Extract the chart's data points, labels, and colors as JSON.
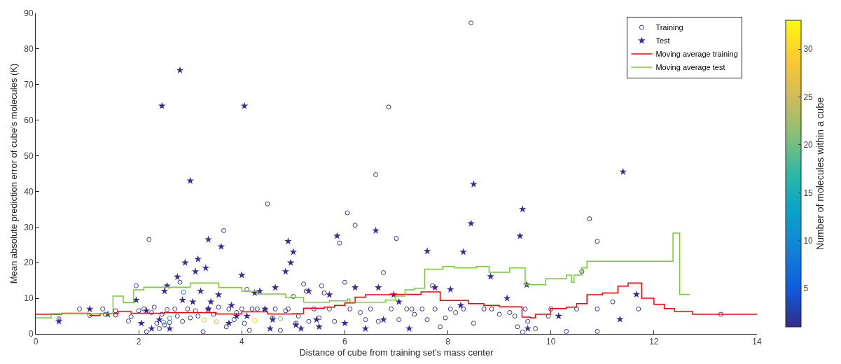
{
  "chart_data": {
    "type": "scatter",
    "xlabel": "Distance of cube from training set's mass center",
    "ylabel": "Mean absolute prediction error of cube's molecules (K)",
    "clabel": "Number of molecules within a cube",
    "clim": [
      1,
      33
    ],
    "cticks": [
      5,
      10,
      15,
      20,
      25,
      30
    ],
    "xlim": [
      0,
      14
    ],
    "xticks": [
      0,
      2,
      4,
      6,
      8,
      10,
      12,
      14
    ],
    "ylim": [
      0,
      90
    ],
    "yticks": [
      0,
      10,
      20,
      30,
      40,
      50,
      60,
      70,
      80,
      90
    ],
    "grid": false,
    "legend": "top right",
    "series": [
      {
        "name": "Training",
        "type": "scatter",
        "marker": "circle",
        "x": [
          0.45,
          0.85,
          1.05,
          1.35,
          1.3,
          1.55,
          1.55,
          1.8,
          1.85,
          1.95,
          2.0,
          2.1,
          2.15,
          2.2,
          2.25,
          2.3,
          2.35,
          2.4,
          2.45,
          2.48,
          2.5,
          2.55,
          2.6,
          2.6,
          2.7,
          2.75,
          2.8,
          2.85,
          2.87,
          2.95,
          3.0,
          3.1,
          3.15,
          3.25,
          3.27,
          3.35,
          3.45,
          3.51,
          3.55,
          3.65,
          3.7,
          3.75,
          3.85,
          3.9,
          4.0,
          4.05,
          4.1,
          4.15,
          4.2,
          4.25,
          4.3,
          4.45,
          4.5,
          4.6,
          4.65,
          4.75,
          4.75,
          4.85,
          4.9,
          5.0,
          5.05,
          5.1,
          5.2,
          5.25,
          5.3,
          5.4,
          5.5,
          5.55,
          5.6,
          5.7,
          5.8,
          5.9,
          6.0,
          6.05,
          6.1,
          6.2,
          6.3,
          6.4,
          6.5,
          6.6,
          6.65,
          6.75,
          6.85,
          6.9,
          7.0,
          7.05,
          7.2,
          7.3,
          7.35,
          7.5,
          7.6,
          7.7,
          7.75,
          7.85,
          7.95,
          8.05,
          8.15,
          8.3,
          8.45,
          8.5,
          8.7,
          8.85,
          9.0,
          9.2,
          9.3,
          9.35,
          9.45,
          9.5,
          9.55,
          9.7,
          9.95,
          10.0,
          10.3,
          10.5,
          10.6,
          10.75,
          10.9,
          10.9,
          10.9,
          11.2,
          11.7,
          13.3
        ],
        "values": [
          4.2,
          7,
          5.2,
          5.5,
          7,
          6.5,
          5.3,
          3.6,
          4.8,
          13.5,
          6.5,
          7,
          0.6,
          26.5,
          6,
          7.5,
          3,
          1.5,
          5.5,
          3.3,
          2.5,
          6.8,
          3.2,
          4.4,
          7,
          5,
          14.5,
          3.5,
          11.7,
          7,
          4.5,
          6.5,
          5,
          0.6,
          3.9,
          7,
          5.5,
          3.4,
          7.5,
          29,
          2,
          7,
          4,
          6,
          7,
          3,
          12.5,
          1,
          7,
          3.8,
          7,
          6.8,
          36.5,
          4.5,
          7,
          1,
          4.3,
          6.5,
          7,
          10.5,
          3,
          5,
          14,
          12,
          3.5,
          7,
          4.5,
          13.5,
          11.5,
          7,
          3.5,
          25.5,
          14.5,
          34,
          7,
          30.5,
          6,
          4,
          7,
          44.7,
          3.5,
          17.2,
          63.7,
          7,
          26.8,
          4,
          7,
          7,
          5.5,
          7,
          4,
          13.5,
          7,
          2,
          4.5,
          7,
          6,
          7,
          87.3,
          3,
          7,
          7,
          5.5,
          6,
          5,
          2,
          0.5,
          7,
          3.5,
          1.5,
          5,
          7,
          0.7,
          7,
          17.5,
          32.3,
          26,
          0.7,
          7,
          9,
          7,
          5.5
        ],
        "colors": [
          "#38309a",
          "#38309a",
          "#38309a",
          "#38309a",
          "#38309a",
          "#38309a",
          "#38309a",
          "#38309a",
          "#38309a",
          "#38309a",
          "#38309a",
          "#38309a",
          "#38309a",
          "#38309a",
          "#38309a",
          "#38309a",
          "#38309a",
          "#38309a",
          "#38309a",
          "#0a9ace",
          "#38309a",
          "#38309a",
          "#38309a",
          "#10a8bf",
          "#38309a",
          "#38309a",
          "#38309a",
          "#38309a",
          "#0d92d0",
          "#38309a",
          "#38309a",
          "#38309a",
          "#38309a",
          "#38309a",
          "#f0c23f",
          "#38309a",
          "#38309a",
          "#d1bb59",
          "#38309a",
          "#38309a",
          "#38309a",
          "#38309a",
          "#38309a",
          "#38309a",
          "#38309a",
          "#38309a",
          "#38309a",
          "#38309a",
          "#38309a",
          "#fdd42a",
          "#38309a",
          "#38309a",
          "#38309a",
          "#38309a",
          "#38309a",
          "#38309a",
          "#73bd80",
          "#38309a",
          "#38309a",
          "#38309a",
          "#38309a",
          "#38309a",
          "#38309a",
          "#38309a",
          "#38309a",
          "#38309a",
          "#38309a",
          "#38309a",
          "#38309a",
          "#38309a",
          "#38309a",
          "#38309a",
          "#38309a",
          "#38309a",
          "#38309a",
          "#38309a",
          "#38309a",
          "#38309a",
          "#38309a",
          "#38309a",
          "#38309a",
          "#38309a",
          "#38309a",
          "#38309a",
          "#38309a",
          "#38309a",
          "#38309a",
          "#38309a",
          "#38309a",
          "#38309a",
          "#38309a",
          "#38309a",
          "#38309a",
          "#38309a",
          "#38309a",
          "#38309a",
          "#38309a",
          "#38309a",
          "#38309a",
          "#38309a",
          "#38309a",
          "#38309a",
          "#38309a",
          "#38309a",
          "#38309a",
          "#38309a",
          "#38309a",
          "#38309a",
          "#38309a",
          "#38309a",
          "#38309a",
          "#38309a",
          "#38309a",
          "#38309a",
          "#38309a",
          "#38309a",
          "#38309a",
          "#38309a",
          "#38309a",
          "#38309a",
          "#38309a",
          "#38309a"
        ]
      },
      {
        "name": "Test",
        "type": "scatter",
        "marker": "star",
        "x": [
          0.45,
          1.05,
          1.4,
          1.95,
          2.05,
          2.15,
          2.25,
          2.4,
          2.45,
          2.5,
          2.55,
          2.6,
          2.75,
          2.8,
          2.85,
          2.9,
          3.0,
          3.05,
          3.1,
          3.15,
          3.2,
          3.3,
          3.35,
          3.35,
          3.4,
          3.55,
          3.6,
          3.75,
          3.8,
          3.9,
          4.0,
          4.05,
          4.1,
          4.25,
          4.35,
          4.45,
          4.55,
          4.6,
          4.65,
          4.85,
          4.9,
          4.95,
          5.0,
          5.05,
          5.15,
          5.3,
          5.45,
          5.5,
          5.7,
          5.85,
          6.0,
          6.2,
          6.4,
          6.6,
          6.65,
          6.75,
          6.95,
          7.05,
          7.25,
          7.6,
          7.75,
          8.05,
          8.25,
          8.3,
          8.45,
          8.5,
          8.83,
          9.15,
          9.4,
          9.45,
          9.55,
          9.53,
          10.15,
          11.34,
          11.4,
          11.66
        ],
        "values": [
          3.5,
          7,
          5.5,
          9.5,
          3,
          6.5,
          1.5,
          4,
          64,
          12,
          13.5,
          1.5,
          16,
          74,
          9.5,
          20,
          43,
          9,
          17.5,
          21,
          12,
          18.5,
          26.5,
          7,
          9,
          11,
          24.5,
          3,
          8,
          5,
          16.5,
          64,
          5,
          11.5,
          12,
          7,
          1.5,
          4,
          13,
          17.5,
          26,
          20,
          23,
          2.5,
          1.5,
          12,
          4,
          2,
          11,
          27.5,
          3,
          13,
          1.5,
          29,
          13,
          4,
          11,
          9,
          1.5,
          23.2,
          13,
          12.5,
          8,
          23,
          31,
          42,
          16.1,
          10,
          27.5,
          35,
          1.5,
          13.8,
          5,
          4.1,
          45.5,
          11.1
        ],
        "color": "#3a2a9e"
      },
      {
        "name": "Moving average training",
        "type": "step",
        "color": "#ff0000",
        "x": [
          0,
          0.5,
          1.05,
          1.25,
          1.6,
          1.85,
          2.5,
          3.0,
          3.5,
          4.0,
          4.5,
          5.0,
          5.2,
          5.6,
          5.8,
          6.0,
          6.2,
          6.4,
          6.87,
          7.48,
          7.85,
          8.4,
          8.7,
          9.0,
          9.44,
          9.6,
          9.7,
          9.99,
          10.3,
          10.5,
          10.7,
          11.0,
          11.3,
          11.5,
          11.76,
          12.0,
          12.2,
          12.4,
          12.75,
          14.0
        ],
        "values": [
          5.5,
          5.8,
          5.2,
          5.7,
          6.3,
          5.8,
          6.0,
          6.0,
          5.6,
          6.2,
          5.6,
          5.7,
          7.2,
          7.5,
          8.0,
          8.7,
          10.3,
          11.0,
          11.1,
          11.8,
          9.4,
          8.5,
          8.0,
          7.6,
          4.7,
          4.5,
          5.5,
          7.1,
          7.5,
          8.5,
          11.0,
          11.5,
          13.4,
          14.3,
          10.0,
          8.3,
          7.1,
          6.3,
          5.5,
          5.5
        ]
      },
      {
        "name": "Moving average test",
        "type": "step",
        "color": "#77cc33",
        "x": [
          0,
          0.3,
          1.45,
          1.5,
          1.7,
          1.9,
          2.1,
          3.0,
          3.55,
          4.0,
          4.3,
          4.85,
          5.2,
          5.7,
          6.05,
          6.1,
          6.79,
          6.98,
          7.17,
          7.35,
          7.55,
          7.9,
          8.13,
          8.55,
          8.8,
          9.2,
          9.5,
          9.9,
          10.3,
          10.4,
          10.45,
          10.6,
          10.7,
          12.37,
          12.5,
          12.7
        ],
        "values": [
          4.5,
          5.7,
          5.7,
          10.6,
          8.8,
          12.4,
          13.1,
          14.3,
          13,
          12,
          11.2,
          10.2,
          8.9,
          9.3,
          9.8,
          8.9,
          9.5,
          10.6,
          12.4,
          12.8,
          18.2,
          18.9,
          18.5,
          18.9,
          17.3,
          18.5,
          13.8,
          15.5,
          16.5,
          14.5,
          16.5,
          18.5,
          20.4,
          28.3,
          11.1,
          11.1
        ]
      }
    ]
  }
}
